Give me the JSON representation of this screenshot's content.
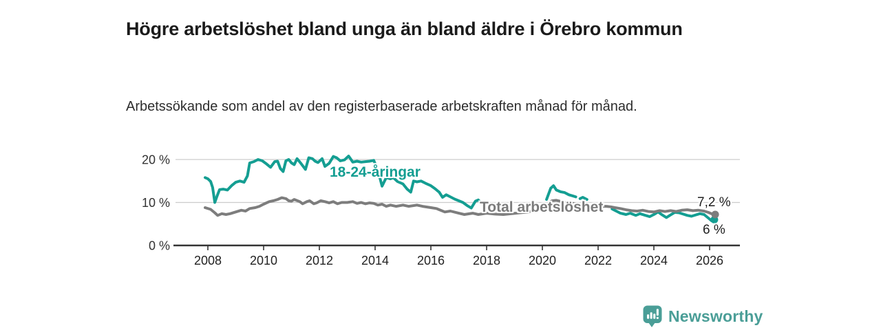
{
  "colors": {
    "youth": "#149e92",
    "total": "#7d7d7d",
    "grid": "#cccccc",
    "axis": "#333333",
    "tick_text": "#222222",
    "annotation_text": "#1f1f1f",
    "brand": "#4a9e97"
  },
  "chart_data": {
    "type": "line",
    "title": "Högre arbetslöshet bland unga än bland äldre i Örebro kommun",
    "subtitle": "Arbetssökande som andel av den registerbaserade arbetskraften månad för månad.",
    "xlabel": "",
    "ylabel": "",
    "x_range": [
      2007.7,
      2027.1
    ],
    "ylim": [
      0,
      21
    ],
    "grid": "horizontal",
    "legend_position": "inline-labels",
    "yticks": [
      {
        "value": 20,
        "label": "20 %"
      },
      {
        "value": 10,
        "label": "10 %"
      },
      {
        "value": 0,
        "label": "0 %"
      }
    ],
    "xticks": [
      2008,
      2010,
      2012,
      2014,
      2016,
      2018,
      2020,
      2022,
      2024,
      2026
    ],
    "series": [
      {
        "id": "youth",
        "name": "18-24-åringar",
        "color": "#149e92",
        "end_label": "6 %",
        "end_value": 6.0,
        "segments": [
          [
            [
              2007.9,
              15.8
            ],
            [
              2008.0,
              15.5
            ],
            [
              2008.1,
              14.9
            ],
            [
              2008.17,
              13.5
            ],
            [
              2008.25,
              10.0
            ],
            [
              2008.33,
              11.5
            ],
            [
              2008.42,
              13.0
            ],
            [
              2008.55,
              13.1
            ],
            [
              2008.7,
              12.9
            ],
            [
              2008.85,
              13.9
            ],
            [
              2009.0,
              14.7
            ],
            [
              2009.15,
              15.0
            ],
            [
              2009.3,
              14.7
            ],
            [
              2009.42,
              16.2
            ],
            [
              2009.5,
              19.2
            ],
            [
              2009.65,
              19.5
            ],
            [
              2009.8,
              20.0
            ],
            [
              2009.95,
              19.7
            ],
            [
              2010.1,
              19.0
            ],
            [
              2010.25,
              18.2
            ],
            [
              2010.4,
              19.5
            ],
            [
              2010.5,
              19.6
            ],
            [
              2010.6,
              17.9
            ],
            [
              2010.7,
              17.2
            ],
            [
              2010.8,
              19.7
            ],
            [
              2010.9,
              20.0
            ],
            [
              2011.0,
              19.2
            ],
            [
              2011.1,
              18.8
            ],
            [
              2011.2,
              20.2
            ],
            [
              2011.35,
              19.0
            ],
            [
              2011.5,
              17.7
            ],
            [
              2011.62,
              20.4
            ],
            [
              2011.75,
              20.2
            ],
            [
              2011.85,
              19.6
            ],
            [
              2011.95,
              19.3
            ],
            [
              2012.1,
              20.2
            ],
            [
              2012.2,
              18.4
            ],
            [
              2012.35,
              19.1
            ],
            [
              2012.5,
              20.7
            ],
            [
              2012.62,
              20.4
            ],
            [
              2012.75,
              19.7
            ],
            [
              2012.9,
              19.9
            ],
            [
              2013.05,
              20.8
            ],
            [
              2013.2,
              19.4
            ],
            [
              2013.35,
              19.6
            ],
            [
              2013.5,
              19.4
            ],
            [
              2013.65,
              19.5
            ],
            [
              2013.8,
              19.6
            ],
            [
              2013.95,
              19.8
            ],
            [
              2014.1,
              17.5
            ],
            [
              2014.25,
              13.8
            ],
            [
              2014.4,
              15.8
            ],
            [
              2014.55,
              15.5
            ],
            [
              2014.65,
              15.8
            ],
            [
              2014.8,
              14.9
            ],
            [
              2015.0,
              14.3
            ],
            [
              2015.15,
              13.1
            ],
            [
              2015.28,
              12.4
            ],
            [
              2015.38,
              15.0
            ],
            [
              2015.5,
              14.8
            ],
            [
              2015.65,
              15.0
            ],
            [
              2015.8,
              14.5
            ],
            [
              2016.0,
              13.9
            ],
            [
              2016.15,
              13.2
            ],
            [
              2016.3,
              12.4
            ],
            [
              2016.42,
              11.2
            ],
            [
              2016.55,
              11.8
            ],
            [
              2016.7,
              11.3
            ],
            [
              2016.85,
              10.8
            ],
            [
              2017.0,
              10.4
            ],
            [
              2017.15,
              10.0
            ],
            [
              2017.3,
              9.3
            ],
            [
              2017.45,
              8.7
            ],
            [
              2017.6,
              10.3
            ],
            [
              2017.7,
              10.6
            ],
            [
              2017.8,
              9.9
            ]
          ],
          [
            [
              2020.15,
              10.7
            ],
            [
              2020.3,
              13.3
            ],
            [
              2020.4,
              13.9
            ],
            [
              2020.5,
              12.9
            ],
            [
              2020.65,
              12.5
            ],
            [
              2020.8,
              12.3
            ],
            [
              2020.95,
              11.8
            ],
            [
              2021.1,
              11.5
            ],
            [
              2021.2,
              11.3
            ]
          ],
          [
            [
              2021.35,
              10.9
            ],
            [
              2021.45,
              11.2
            ],
            [
              2021.6,
              10.7
            ]
          ],
          [
            [
              2022.5,
              8.5
            ],
            [
              2022.65,
              8.0
            ],
            [
              2022.8,
              7.5
            ],
            [
              2023.0,
              7.2
            ],
            [
              2023.15,
              7.5
            ],
            [
              2023.35,
              7.0
            ],
            [
              2023.5,
              7.4
            ],
            [
              2023.7,
              7.0
            ],
            [
              2023.85,
              6.7
            ],
            [
              2024.0,
              7.2
            ],
            [
              2024.15,
              7.8
            ],
            [
              2024.3,
              7.1
            ],
            [
              2024.45,
              6.5
            ],
            [
              2024.6,
              7.1
            ],
            [
              2024.75,
              7.7
            ],
            [
              2024.9,
              7.6
            ],
            [
              2025.05,
              7.3
            ],
            [
              2025.2,
              7.0
            ],
            [
              2025.35,
              6.8
            ],
            [
              2025.5,
              7.1
            ],
            [
              2025.65,
              7.4
            ],
            [
              2025.8,
              7.2
            ],
            [
              2025.95,
              6.4
            ],
            [
              2026.08,
              5.7
            ],
            [
              2026.17,
              6.0
            ]
          ]
        ]
      },
      {
        "id": "total",
        "name": "Total arbetslöshet",
        "color": "#7d7d7d",
        "end_label": "7,2 %",
        "end_value": 7.2,
        "segments": [
          [
            [
              2007.9,
              8.8
            ],
            [
              2008.1,
              8.4
            ],
            [
              2008.25,
              7.6
            ],
            [
              2008.35,
              7.0
            ],
            [
              2008.5,
              7.4
            ],
            [
              2008.65,
              7.2
            ],
            [
              2008.8,
              7.4
            ],
            [
              2009.0,
              7.8
            ],
            [
              2009.2,
              8.2
            ],
            [
              2009.35,
              8.0
            ],
            [
              2009.5,
              8.6
            ],
            [
              2009.7,
              8.8
            ],
            [
              2009.85,
              9.1
            ],
            [
              2010.0,
              9.6
            ],
            [
              2010.2,
              10.2
            ],
            [
              2010.35,
              10.4
            ],
            [
              2010.5,
              10.7
            ],
            [
              2010.65,
              11.1
            ],
            [
              2010.8,
              10.9
            ],
            [
              2010.9,
              10.4
            ],
            [
              2011.0,
              10.3
            ],
            [
              2011.1,
              10.7
            ],
            [
              2011.3,
              10.2
            ],
            [
              2011.4,
              9.7
            ],
            [
              2011.55,
              10.2
            ],
            [
              2011.65,
              10.4
            ],
            [
              2011.8,
              9.7
            ],
            [
              2011.9,
              9.9
            ],
            [
              2012.05,
              10.4
            ],
            [
              2012.2,
              10.2
            ],
            [
              2012.35,
              9.9
            ],
            [
              2012.5,
              10.2
            ],
            [
              2012.65,
              9.7
            ],
            [
              2012.8,
              10.0
            ],
            [
              2013.0,
              10.0
            ],
            [
              2013.2,
              10.2
            ],
            [
              2013.35,
              9.8
            ],
            [
              2013.5,
              10.0
            ],
            [
              2013.65,
              9.7
            ],
            [
              2013.8,
              9.9
            ],
            [
              2013.95,
              9.8
            ],
            [
              2014.1,
              9.4
            ],
            [
              2014.25,
              9.6
            ],
            [
              2014.4,
              9.1
            ],
            [
              2014.55,
              9.4
            ],
            [
              2014.75,
              9.1
            ],
            [
              2015.0,
              9.4
            ],
            [
              2015.2,
              9.1
            ],
            [
              2015.5,
              9.4
            ],
            [
              2015.7,
              9.1
            ],
            [
              2016.0,
              8.8
            ],
            [
              2016.2,
              8.6
            ],
            [
              2016.5,
              7.8
            ],
            [
              2016.7,
              8.0
            ],
            [
              2017.0,
              7.5
            ],
            [
              2017.2,
              7.2
            ],
            [
              2017.5,
              7.5
            ],
            [
              2017.7,
              7.2
            ],
            [
              2018.0,
              7.5
            ],
            [
              2018.3,
              7.3
            ],
            [
              2018.6,
              7.2
            ],
            [
              2018.9,
              7.4
            ],
            [
              2019.2,
              7.6
            ],
            [
              2019.5,
              7.8
            ],
            [
              2019.8,
              8.2
            ],
            [
              2020.0,
              8.6
            ],
            [
              2020.2,
              9.8
            ],
            [
              2020.35,
              10.4
            ],
            [
              2020.5,
              10.5
            ],
            [
              2020.7,
              10.2
            ],
            [
              2020.9,
              9.9
            ],
            [
              2021.1,
              9.8
            ],
            [
              2021.4,
              9.5
            ],
            [
              2021.7,
              9.3
            ],
            [
              2022.0,
              9.1
            ],
            [
              2022.3,
              9.1
            ],
            [
              2022.45,
              9.0
            ],
            [
              2022.6,
              8.8
            ],
            [
              2022.8,
              8.6
            ],
            [
              2023.0,
              8.3
            ],
            [
              2023.2,
              8.1
            ],
            [
              2023.4,
              8.0
            ],
            [
              2023.6,
              8.2
            ],
            [
              2023.8,
              7.9
            ],
            [
              2024.0,
              7.8
            ],
            [
              2024.2,
              8.1
            ],
            [
              2024.4,
              7.9
            ],
            [
              2024.6,
              8.1
            ],
            [
              2024.8,
              7.9
            ],
            [
              2025.0,
              8.2
            ],
            [
              2025.2,
              8.3
            ],
            [
              2025.4,
              8.1
            ],
            [
              2025.6,
              8.2
            ],
            [
              2025.8,
              8.0
            ],
            [
              2025.95,
              7.7
            ],
            [
              2026.1,
              7.3
            ],
            [
              2026.2,
              7.2
            ]
          ]
        ]
      }
    ]
  },
  "footer": {
    "brand": "Newsworthy"
  }
}
